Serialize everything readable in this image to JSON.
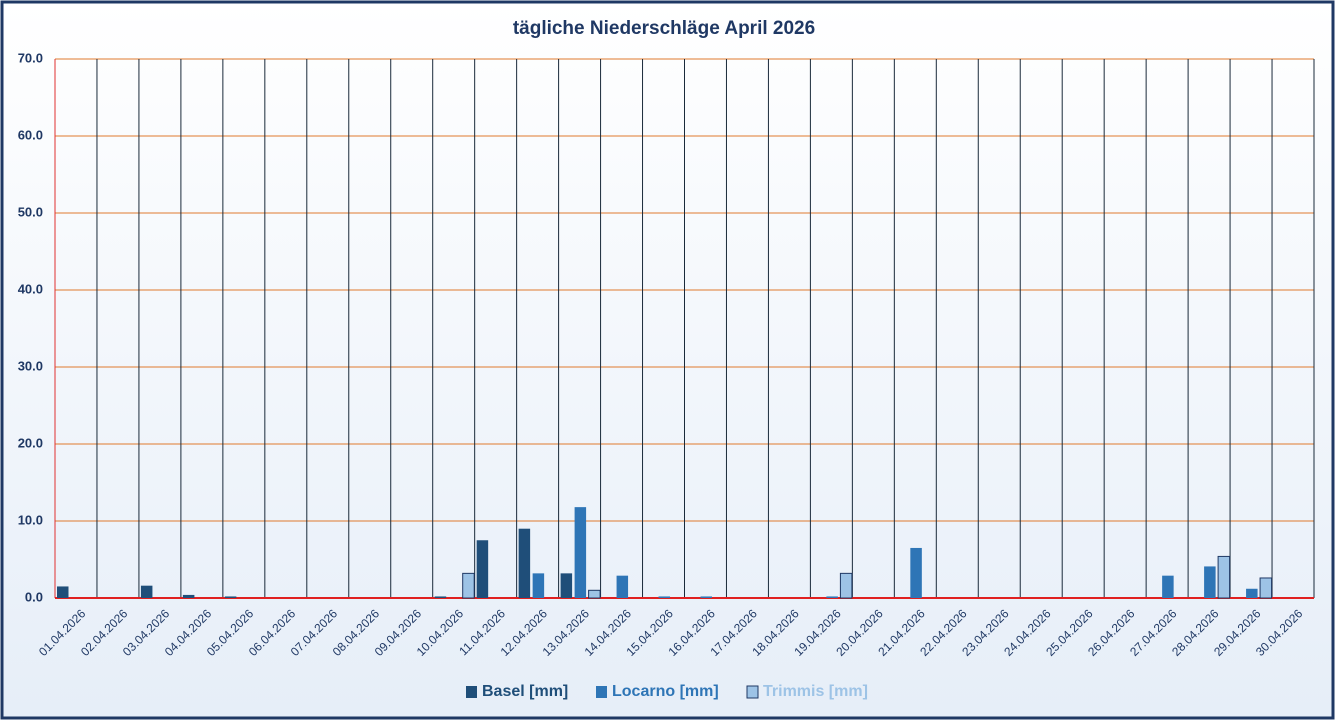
{
  "chart_data": {
    "type": "bar",
    "title": "tägliche Niederschläge April 2026",
    "categories": [
      "01.04.2026",
      "02.04.2026",
      "03.04.2026",
      "04.04.2026",
      "05.04.2026",
      "06.04.2026",
      "07.04.2026",
      "08.04.2026",
      "09.04.2026",
      "10.04.2026",
      "11.04.2026",
      "12.04.2026",
      "13.04.2026",
      "14.04.2026",
      "15.04.2026",
      "16.04.2026",
      "17.04.2026",
      "18.04.2026",
      "19.04.2026",
      "20.04.2026",
      "21.04.2026",
      "22.04.2026",
      "23.04.2026",
      "24.04.2026",
      "25.04.2026",
      "26.04.2026",
      "27.04.2026",
      "28.04.2026",
      "29.04.2026",
      "30.04.2026"
    ],
    "series": [
      {
        "name": "Basel [mm]",
        "color": "#1f4e79",
        "values": [
          1.5,
          0,
          1.6,
          0.4,
          0.2,
          0,
          0,
          0,
          0,
          0.2,
          7.5,
          9.0,
          3.2,
          0,
          0,
          0,
          0,
          0,
          0,
          0,
          0,
          0,
          0,
          0,
          0,
          0,
          0,
          0,
          0,
          0
        ]
      },
      {
        "name": "Locarno [mm]",
        "color": "#2e75b6",
        "values": [
          0,
          0,
          0,
          0,
          0,
          0,
          0,
          0,
          0,
          0,
          0,
          3.2,
          11.8,
          2.9,
          0.2,
          0.2,
          0,
          0,
          0.2,
          0,
          6.5,
          0,
          0,
          0,
          0,
          0,
          2.9,
          4.1,
          1.2,
          0
        ]
      },
      {
        "name": "Trimmis [mm]",
        "color": "#9dc3e6",
        "values": [
          0,
          0,
          0,
          0,
          0,
          0,
          0,
          0,
          0,
          3.2,
          0,
          0,
          1.0,
          0,
          0,
          0,
          0,
          0,
          3.2,
          0,
          0,
          0,
          0,
          0,
          0,
          0,
          0,
          5.4,
          2.6,
          0
        ]
      }
    ],
    "ylim": [
      0,
      70
    ],
    "yticks": [
      {
        "value": 0,
        "label": "0.0"
      },
      {
        "value": 10,
        "label": "10.0"
      },
      {
        "value": 20,
        "label": "20.0"
      },
      {
        "value": 30,
        "label": "30.0"
      },
      {
        "value": 40,
        "label": "40.0"
      },
      {
        "value": 50,
        "label": "50.0"
      },
      {
        "value": 60,
        "label": "60.0"
      },
      {
        "value": 70,
        "label": "70.0"
      }
    ],
    "grid": true
  }
}
